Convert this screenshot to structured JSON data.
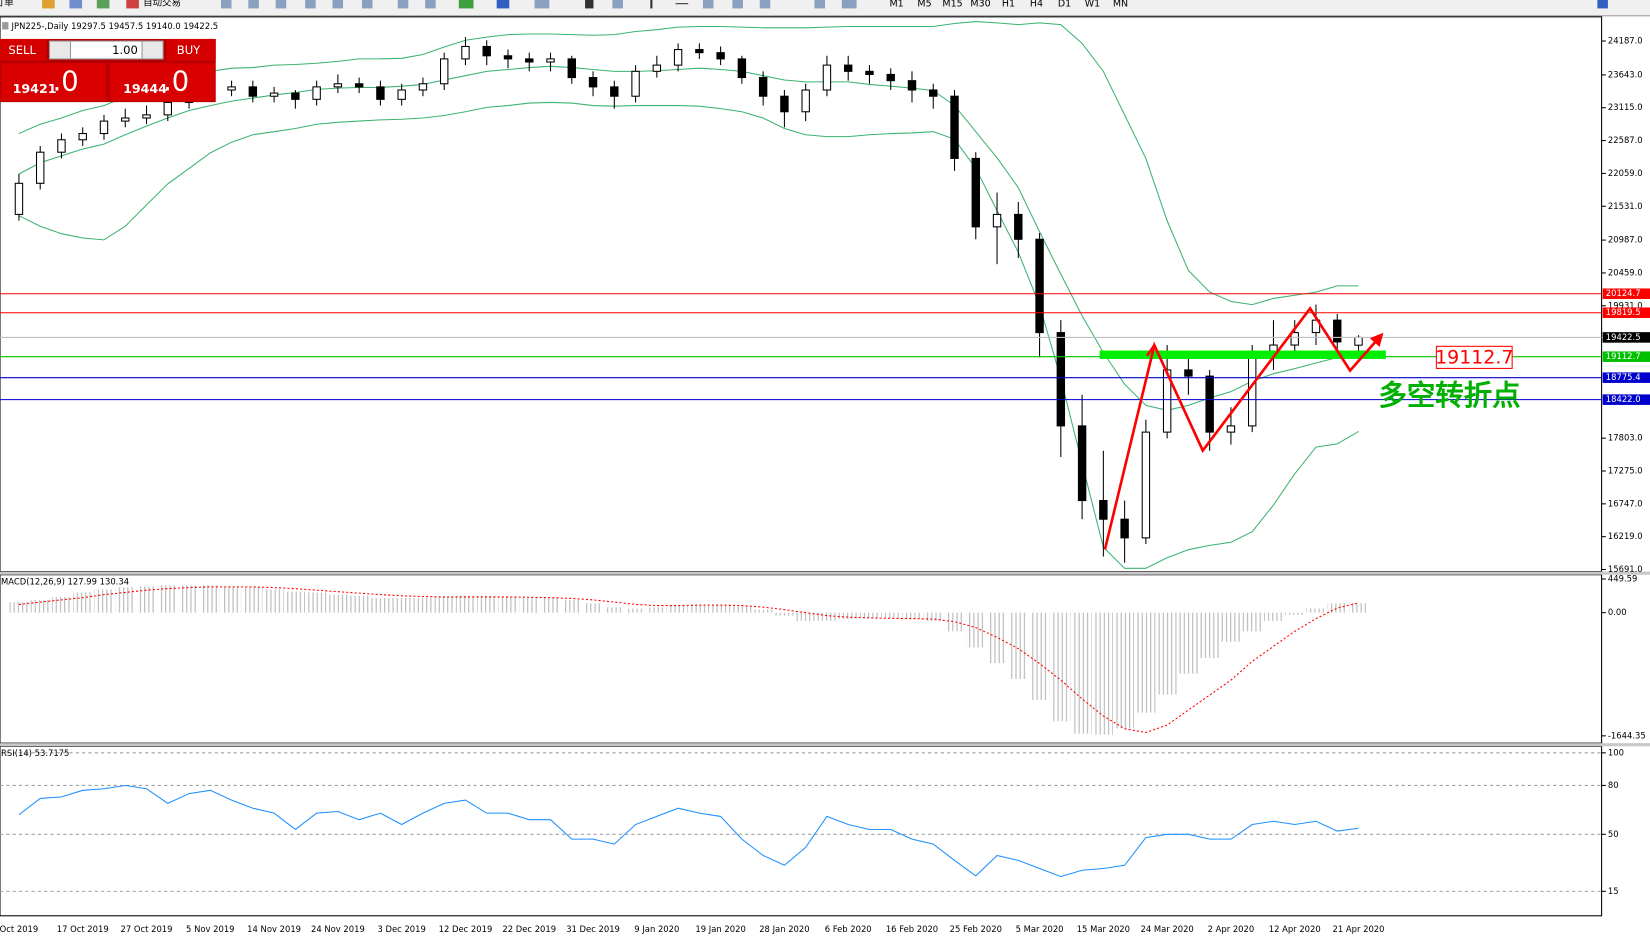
{
  "toolbar": {
    "order": "新订单",
    "autotrading": "自动交易",
    "timeframes": [
      "M1",
      "M5",
      "M15",
      "M30",
      "H1",
      "H4",
      "D1",
      "W1",
      "MN"
    ]
  },
  "trade_panel": {
    "sell": "SELL",
    "buy": "BUY",
    "lot": "1.00",
    "bid": {
      "main": "19421",
      "fraction": ".0"
    },
    "ask": {
      "main": "19444",
      "fraction": ".0"
    }
  },
  "chart_data": [
    {
      "type": "candlestick",
      "title": "JPN225-,Daily  19297.5 19457.5 19140.0 19422.5",
      "categories": [
        "Oct 2019",
        null,
        null,
        "17 Oct 2019",
        null,
        null,
        "27 Oct 2019",
        null,
        null,
        "5 Nov 2019",
        null,
        null,
        "14 Nov 2019",
        null,
        null,
        "24 Nov 2019",
        null,
        null,
        "3 Dec 2019",
        null,
        null,
        "12 Dec 2019",
        null,
        null,
        "22 Dec 2019",
        null,
        null,
        "31 Dec 2019",
        null,
        null,
        "9 Jan 2020",
        null,
        null,
        "19 Jan 2020",
        null,
        null,
        "28 Jan 2020",
        null,
        null,
        "6 Feb 2020",
        null,
        null,
        "16 Feb 2020",
        null,
        null,
        "25 Feb 2020",
        null,
        null,
        "5 Mar 2020",
        null,
        null,
        "15 Mar 2020",
        null,
        null,
        "24 Mar 2020",
        null,
        null,
        "2 Apr 2020",
        null,
        null,
        "12 Apr 2020",
        null,
        null,
        "21 Apr 2020"
      ],
      "open": [
        21400,
        21900,
        22400,
        22600,
        22700,
        22900,
        22950,
        23000,
        23200,
        23400,
        23400,
        23450,
        23300,
        23350,
        23250,
        23450,
        23500,
        23450,
        23250,
        23400,
        23500,
        23900,
        24100,
        23950,
        23900,
        23850,
        23900,
        23600,
        23450,
        23300,
        23700,
        23800,
        24050,
        24000,
        23900,
        23600,
        23300,
        23050,
        23400,
        23800,
        23700,
        23650,
        23550,
        23400,
        23300,
        22300,
        21200,
        21400,
        21000,
        19500,
        18000,
        16800,
        16500,
        16200,
        17900,
        18900,
        18800,
        17900,
        18000,
        19100,
        19300,
        19500,
        19700,
        19297.5
      ],
      "high": [
        22050,
        22500,
        22700,
        22800,
        23000,
        23100,
        23150,
        23300,
        23500,
        23550,
        23550,
        23550,
        23450,
        23400,
        23550,
        23650,
        23600,
        23550,
        23500,
        23600,
        24000,
        24250,
        24200,
        24050,
        24000,
        24000,
        23950,
        23700,
        23550,
        23800,
        23950,
        24150,
        24150,
        24100,
        23950,
        23700,
        23400,
        23500,
        23950,
        23950,
        23800,
        23750,
        23700,
        23500,
        23400,
        22400,
        21750,
        21600,
        21100,
        19700,
        18500,
        17600,
        16800,
        18100,
        19300,
        19200,
        18900,
        18300,
        19300,
        19700,
        19700,
        19950,
        19800,
        19457.5
      ],
      "low": [
        21300,
        21800,
        22300,
        22500,
        22600,
        22800,
        22850,
        22900,
        23100,
        23250,
        23300,
        23200,
        23200,
        23100,
        23150,
        23350,
        23350,
        23150,
        23150,
        23300,
        23400,
        23800,
        23800,
        23750,
        23700,
        23700,
        23500,
        23300,
        23100,
        23200,
        23600,
        23700,
        23900,
        23800,
        23500,
        23150,
        22800,
        22900,
        23300,
        23550,
        23500,
        23400,
        23200,
        23100,
        22100,
        21000,
        20600,
        20700,
        19100,
        17500,
        16500,
        15900,
        15800,
        16100,
        17800,
        18500,
        17600,
        17700,
        17900,
        18900,
        19100,
        19300,
        19100,
        19140
      ],
      "close": [
        21900,
        22400,
        22600,
        22700,
        22900,
        22950,
        23000,
        23200,
        23400,
        23400,
        23450,
        23300,
        23350,
        23250,
        23450,
        23500,
        23450,
        23250,
        23400,
        23500,
        23900,
        24100,
        23950,
        23900,
        23850,
        23900,
        23600,
        23450,
        23300,
        23700,
        23800,
        24050,
        24000,
        23900,
        23600,
        23300,
        23050,
        23400,
        23800,
        23700,
        23650,
        23550,
        23400,
        23300,
        22300,
        21200,
        21400,
        21000,
        19500,
        18000,
        16800,
        16500,
        16200,
        17900,
        18900,
        18800,
        17900,
        18000,
        19100,
        19300,
        19500,
        19700,
        19350,
        19422.5
      ],
      "up_color": "#ffffff",
      "down_color": "#000000",
      "bands": [
        {
          "color": "#3cb371",
          "values": [
            22700,
            22850,
            22950,
            23070,
            23150,
            23290,
            23410,
            23530,
            23630,
            23700,
            23750,
            23760,
            23800,
            23810,
            23830,
            23860,
            23900,
            23900,
            23910,
            23970,
            24090,
            24200,
            24250,
            24290,
            24300,
            24300,
            24290,
            24280,
            24290,
            24340,
            24370,
            24410,
            24420,
            24420,
            24410,
            24400,
            24400,
            24400,
            24410,
            24420,
            24420,
            24420,
            24420,
            24420,
            24470,
            24500,
            24480,
            24450,
            24480,
            24450,
            24150,
            23700,
            23000,
            22300,
            21300,
            20500,
            20150,
            20000,
            19950,
            20050,
            20100,
            20150,
            20250,
            20250
          ]
        },
        {
          "color": "#3cb371",
          "values": [
            22050,
            22230,
            22340,
            22450,
            22530,
            22680,
            22820,
            22950,
            23070,
            23150,
            23220,
            23270,
            23320,
            23360,
            23410,
            23430,
            23440,
            23440,
            23460,
            23490,
            23560,
            23630,
            23700,
            23730,
            23760,
            23780,
            23760,
            23730,
            23700,
            23700,
            23710,
            23730,
            23750,
            23730,
            23700,
            23630,
            23560,
            23530,
            23530,
            23530,
            23490,
            23460,
            23430,
            23390,
            23150,
            22730,
            22310,
            21830,
            21120,
            20440,
            19770,
            19180,
            18670,
            18330,
            18250,
            18330,
            18450,
            18550,
            18720,
            18840,
            18920,
            19010,
            19100,
            19130
          ]
        },
        {
          "color": "#3cb371",
          "values": [
            21380,
            21210,
            21090,
            21020,
            20990,
            21210,
            21550,
            21890,
            22140,
            22390,
            22560,
            22680,
            22730,
            22780,
            22850,
            22880,
            22900,
            22920,
            22930,
            22950,
            22990,
            23050,
            23120,
            23150,
            23190,
            23200,
            23190,
            23150,
            23140,
            23150,
            23150,
            23150,
            23140,
            23100,
            23050,
            22950,
            22780,
            22680,
            22650,
            22650,
            22680,
            22700,
            22710,
            22730,
            22610,
            22140,
            21460,
            20790,
            19940,
            18760,
            17400,
            16050,
            15710,
            15710,
            15880,
            16010,
            16080,
            16130,
            16300,
            16730,
            17230,
            17660,
            17710,
            17910
          ]
        }
      ],
      "ylim": [
        15658,
        24576
      ],
      "yticks": [
        {
          "value": 24187,
          "label": "24187.0"
        },
        {
          "value": 23643,
          "label": "23643.0"
        },
        {
          "value": 23115,
          "label": "23115.0"
        },
        {
          "value": 22587,
          "label": "22587.0"
        },
        {
          "value": 22059,
          "label": "22059.0"
        },
        {
          "value": 21531,
          "label": "21531.0"
        },
        {
          "value": 20987,
          "label": "20987.0"
        },
        {
          "value": 20459,
          "label": "20459.0"
        },
        {
          "value": 19931,
          "label": "19931.0"
        },
        {
          "value": 17803,
          "label": "17803.0"
        },
        {
          "value": 17275,
          "label": "17275.0"
        },
        {
          "value": 16747,
          "label": "16747.0"
        },
        {
          "value": 16219,
          "label": "16219.0"
        },
        {
          "value": 15691,
          "label": "15691.0"
        }
      ],
      "hlines": [
        {
          "value": 20124.7,
          "color": "#ff0000"
        },
        {
          "value": 19819.5,
          "color": "#ff0000"
        },
        {
          "value": 19422.5,
          "color": "#c0c0c0",
          "label_color": "#000000"
        },
        {
          "value": 19112.7,
          "color": "#00c000"
        },
        {
          "value": 18775.4,
          "color": "#0000cc"
        },
        {
          "value": 18422,
          "label": "18422.0",
          "color": "#0000cc"
        }
      ],
      "annotations": [
        "19112.7",
        "多空转折点"
      ]
    },
    {
      "type": "macd",
      "title": "MACD(12,26,9) 127.99 130.34",
      "histogram": {
        "color": "#b4b4b4",
        "values": [
          140,
          170,
          210,
          270,
          310,
          340,
          350,
          365,
          365,
          365,
          350,
          340,
          310,
          280,
          270,
          240,
          225,
          195,
          195,
          195,
          210,
          225,
          225,
          210,
          195,
          195,
          170,
          125,
          70,
          55,
          70,
          100,
          110,
          110,
          85,
          40,
          -40,
          -110,
          -110,
          -85,
          -70,
          -70,
          -85,
          -110,
          -250,
          -465,
          -675,
          -885,
          -1165,
          -1450,
          -1615,
          -1630,
          -1545,
          -1335,
          -1095,
          -815,
          -605,
          -390,
          -250,
          -110,
          -30,
          55,
          125,
          127.99
        ]
      },
      "signal": {
        "color": "#ff0000",
        "values": [
          110,
          140,
          170,
          200,
          240,
          270,
          300,
          320,
          335,
          345,
          345,
          345,
          335,
          320,
          300,
          280,
          260,
          240,
          225,
          215,
          210,
          210,
          210,
          210,
          205,
          200,
          190,
          170,
          140,
          110,
          95,
          95,
          100,
          100,
          95,
          75,
          40,
          0,
          -40,
          -60,
          -70,
          -75,
          -80,
          -85,
          -120,
          -200,
          -330,
          -480,
          -680,
          -900,
          -1150,
          -1380,
          -1550,
          -1600,
          -1500,
          -1300,
          -1100,
          -900,
          -650,
          -450,
          -250,
          -80,
          60,
          130.34
        ]
      },
      "ylim": [
        -1742,
        506
      ],
      "yticks": [
        449.59,
        {
          "value": 0,
          "label": "0.00"
        },
        -1644.35
      ]
    },
    {
      "type": "line",
      "title": "RSI(14) 53.7175",
      "series": [
        {
          "color": "#1e90ff",
          "values": [
            62,
            72,
            73,
            77,
            78,
            80,
            78,
            69,
            75,
            77,
            71,
            66,
            63,
            53,
            63,
            64,
            59,
            63,
            56,
            63,
            69,
            71,
            63,
            63,
            59,
            59,
            47,
            47,
            44,
            56,
            61,
            66,
            63,
            61,
            47,
            37,
            31,
            42,
            61,
            56,
            53,
            53,
            47,
            44,
            34,
            24.5,
            37,
            34,
            29,
            24,
            28,
            29,
            31,
            48,
            50,
            50,
            47,
            47,
            56,
            58,
            56,
            58,
            52,
            53.7175
          ]
        }
      ],
      "ylim": [
        0,
        104
      ],
      "yticks": [
        100,
        80,
        50,
        15
      ]
    }
  ]
}
